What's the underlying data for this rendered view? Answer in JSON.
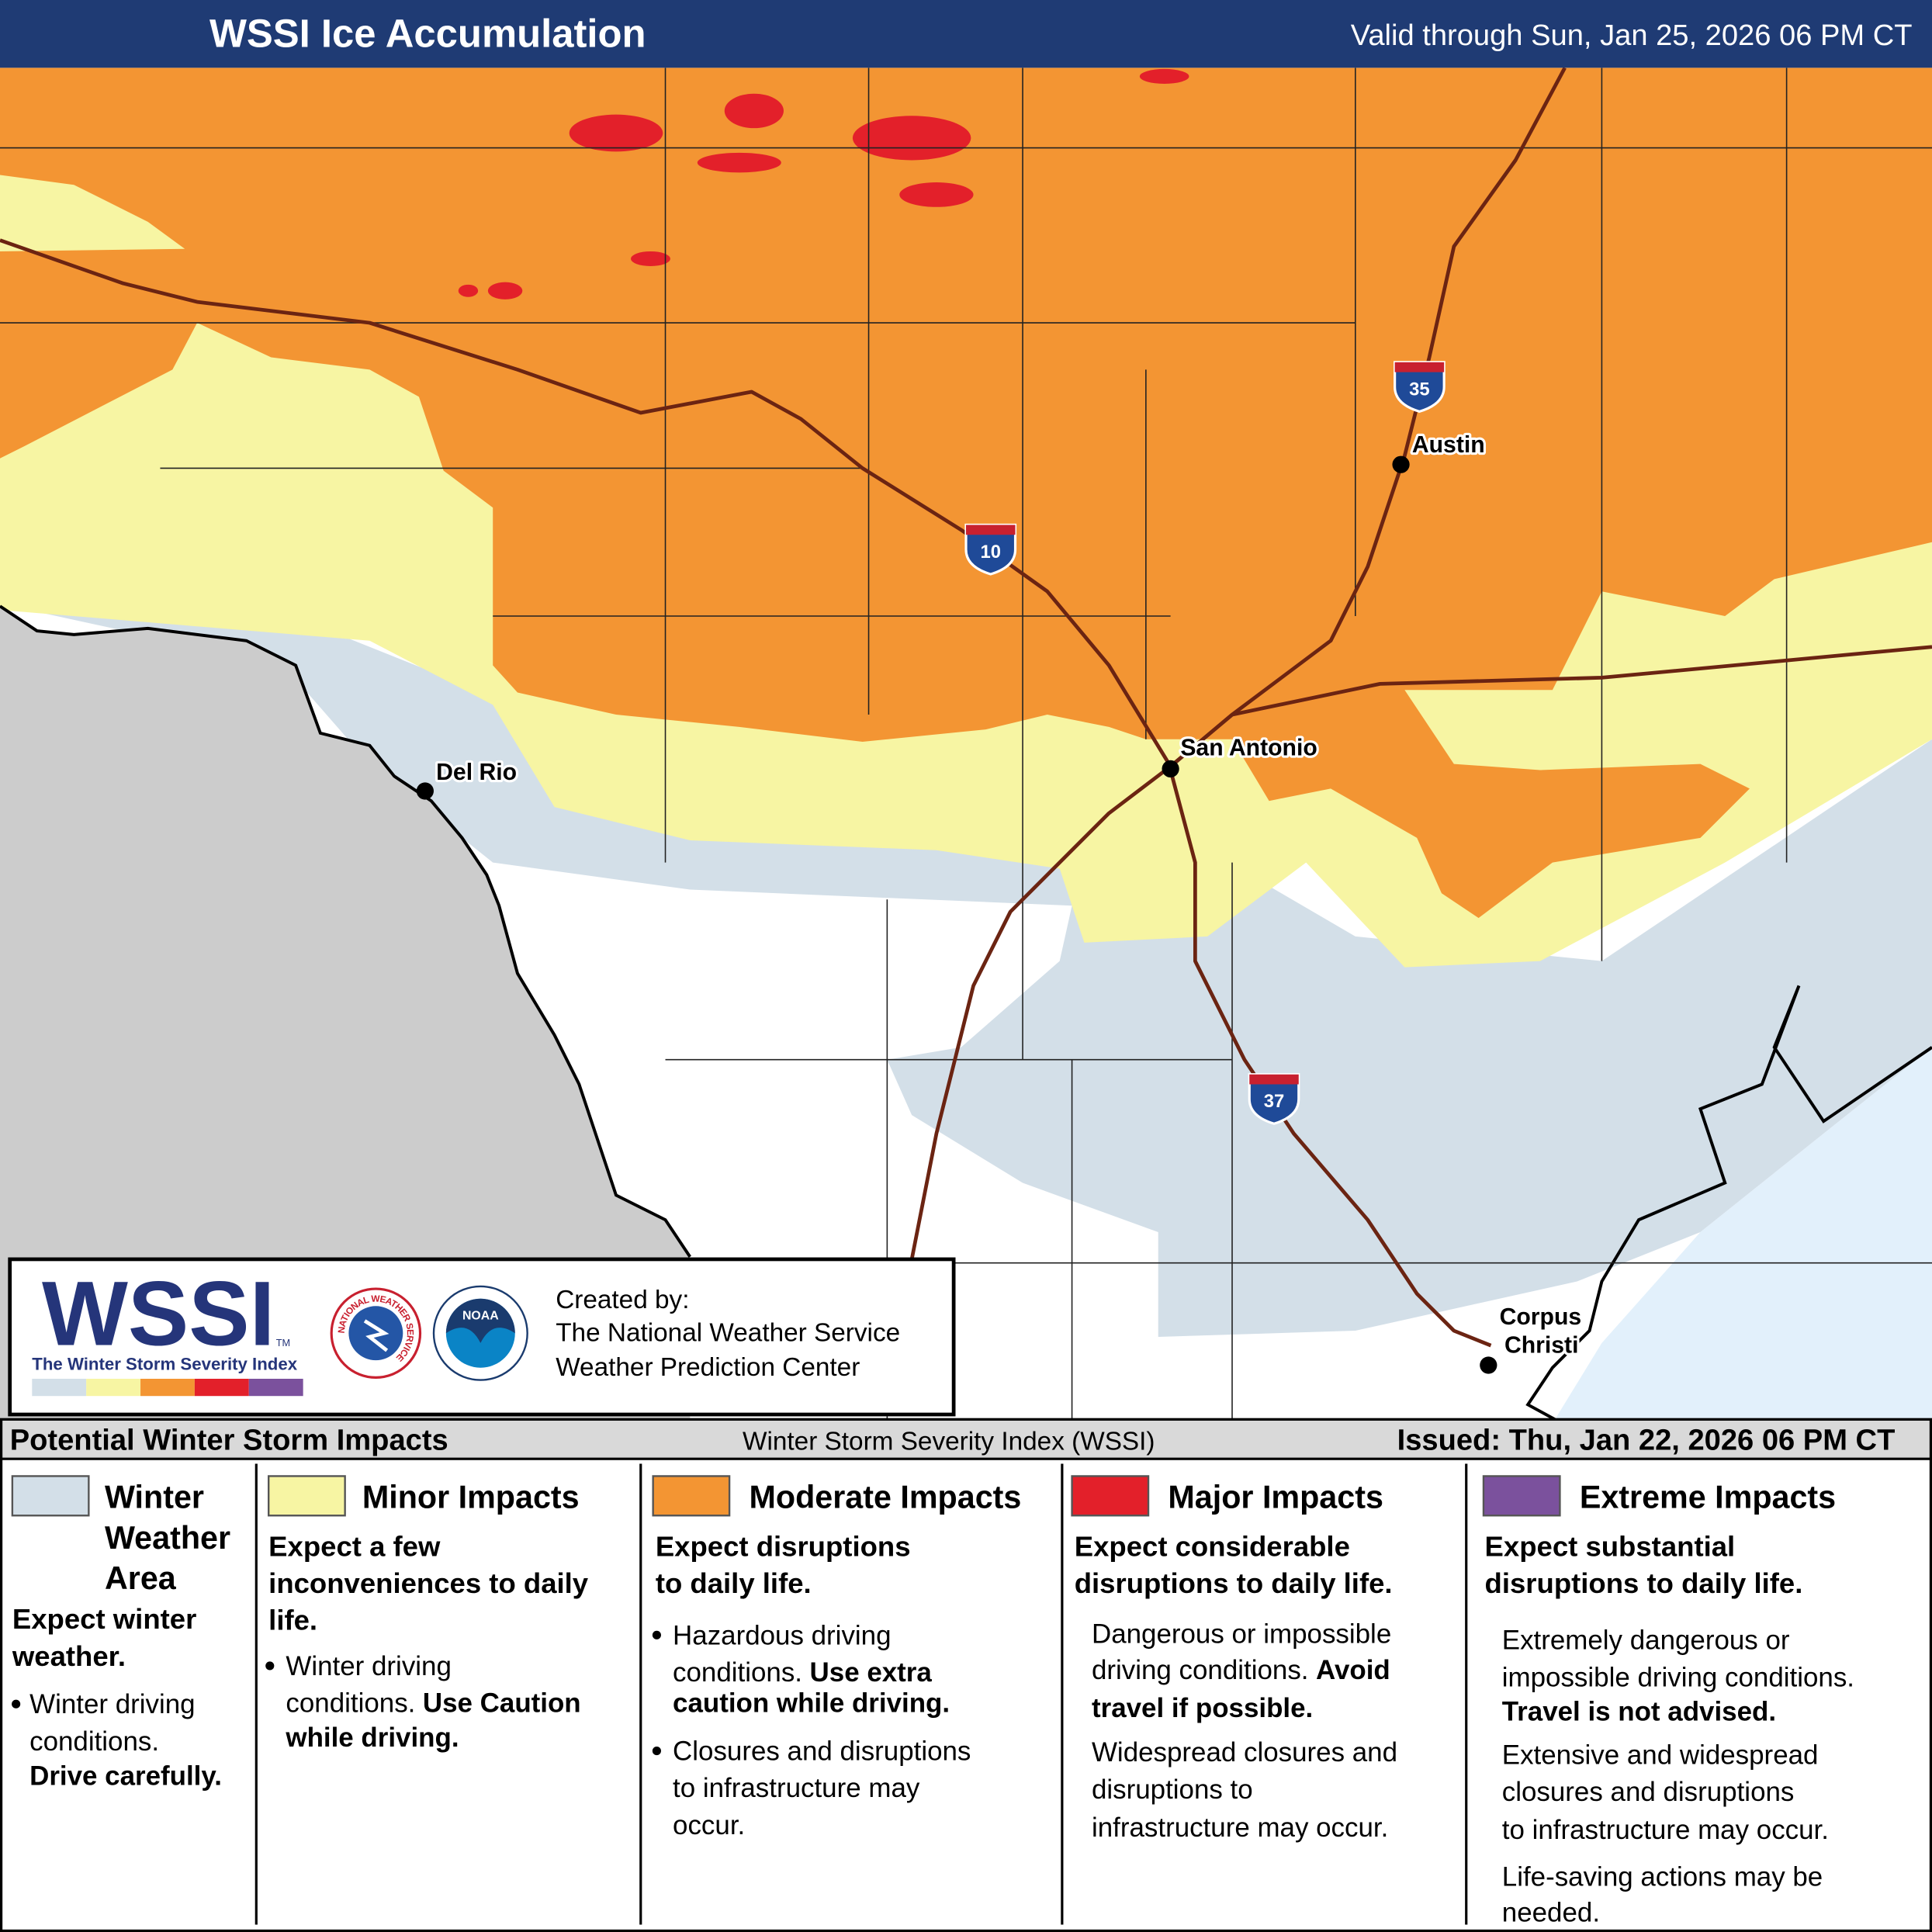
{
  "header": {
    "title": "WSSI Ice Accumulation",
    "valid": "Valid through Sun, Jan 25, 2026 06 PM CT"
  },
  "map": {
    "cities": [
      {
        "name": [
          "Austin"
        ]
      },
      {
        "name": [
          "San Antonio"
        ]
      },
      {
        "name": [
          "Del Rio"
        ]
      },
      {
        "name": [
          "Corpus",
          "Christi"
        ]
      }
    ],
    "interstates": [
      "35",
      "10",
      "37"
    ]
  },
  "logo": {
    "wordmark": "WSSI",
    "trademark": "TM",
    "tagline": "The Winter Storm Severity Index",
    "agency_ring": "NATIONAL WEATHER SERVICE",
    "noaa": "NOAA",
    "credits": [
      "Created by:",
      "The National Weather Service",
      "Weather Prediction Center"
    ]
  },
  "legend": {
    "heading": "Potential Winter Storm Impacts",
    "index": "Winter Storm Severity Index (WSSI)",
    "issued": "Issued: Thu, Jan 22, 2026 06 PM CT",
    "columns": [
      {
        "color": "#d3dfe8",
        "title": [
          "Winter",
          "Weather",
          "Area"
        ],
        "lead": [
          "Expect winter",
          "weather."
        ],
        "body": [
          [
            "Winter driving"
          ],
          [
            "conditions."
          ],
          [
            "Drive carefully."
          ]
        ]
      },
      {
        "color": "#f7f5a3",
        "title": [
          "Minor Impacts"
        ],
        "lead": [
          "Expect a few",
          "inconveniences to daily",
          "life."
        ],
        "body": [
          [
            "Winter driving"
          ],
          [
            "conditions.",
            "Use Caution"
          ],
          [
            "while driving."
          ]
        ]
      },
      {
        "color": "#f39533",
        "title": [
          "Moderate Impacts"
        ],
        "lead": [
          "Expect disruptions",
          "to daily life."
        ],
        "body": [
          [
            "Hazardous driving"
          ],
          [
            "conditions.",
            "Use extra"
          ],
          [
            "caution while driving."
          ],
          [
            "Closures and disruptions"
          ],
          [
            "to infrastructure may"
          ],
          [
            "occur."
          ]
        ]
      },
      {
        "color": "#e3202a",
        "title": [
          "Major Impacts"
        ],
        "lead": [
          "Expect considerable",
          "disruptions to daily life."
        ],
        "body": [
          [
            "Dangerous or impossible"
          ],
          [
            "driving conditions.",
            "Avoid"
          ],
          [
            "travel if possible."
          ],
          [
            "Widespread closures and"
          ],
          [
            "disruptions to"
          ],
          [
            "infrastructure may occur."
          ]
        ]
      },
      {
        "color": "#7b519d",
        "title": [
          "Extreme Impacts"
        ],
        "lead": [
          "Expect substantial",
          "disruptions to daily life."
        ],
        "body": [
          [
            "Extremely dangerous or"
          ],
          [
            "impossible driving conditions."
          ],
          [
            "Travel is not advised."
          ],
          [
            "Extensive and widespread"
          ],
          [
            "closures and disruptions"
          ],
          [
            "to infrastructure may occur."
          ],
          [
            "Life-saving actions may be"
          ],
          [
            "needed."
          ]
        ]
      }
    ]
  }
}
